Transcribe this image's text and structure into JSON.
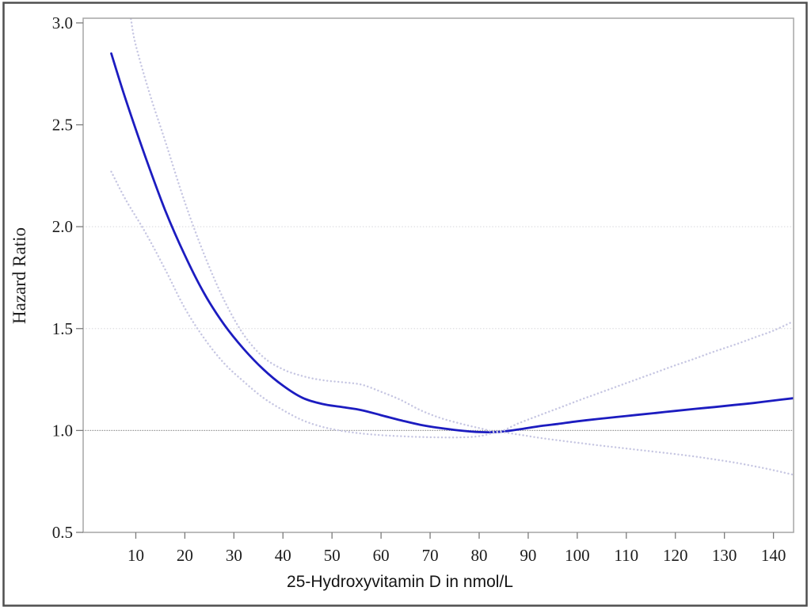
{
  "figure": {
    "background": "#ffffff",
    "border_color": "#4f4f4f"
  },
  "chart_data": {
    "type": "line",
    "title": "",
    "xlabel": "25-Hydroxyvitamin D in nmol/L",
    "ylabel": "Hazard Ratio",
    "xlim": [
      -0.73,
      144.1
    ],
    "ylim": [
      0.5,
      3.023
    ],
    "x_ticks": [
      10,
      20,
      30,
      40,
      50,
      60,
      70,
      80,
      90,
      100,
      110,
      120,
      130,
      140
    ],
    "y_ticks": [
      0.5,
      1.0,
      1.5,
      2.0,
      2.5,
      3.0
    ],
    "gridlines_y": [
      1.5,
      2.0
    ],
    "reference_line_y": 1.0,
    "grid_on": true,
    "legend": null,
    "colors": {
      "estimate_line": "#1c1cc0",
      "confidence_band": "#c6c6e2",
      "gridline": "#d8d8dc",
      "reference_line": "#9a9a9a",
      "plot_frame": "#a6a6a6",
      "tick": "#7a7a7a"
    },
    "series": [
      {
        "name": "hazard-ratio-estimate",
        "style": "solid",
        "color": "#1c1cc0",
        "x": [
          5,
          8,
          12,
          16,
          20,
          24,
          28,
          32,
          36,
          40,
          44,
          48,
          52,
          56,
          60,
          64,
          68,
          72,
          76,
          80,
          84,
          88,
          92,
          96,
          100,
          104,
          108,
          112,
          116,
          120,
          124,
          128,
          132,
          136,
          140,
          144
        ],
        "y": [
          2.85,
          2.62,
          2.34,
          2.08,
          1.86,
          1.67,
          1.52,
          1.4,
          1.3,
          1.22,
          1.16,
          1.13,
          1.115,
          1.1,
          1.075,
          1.05,
          1.028,
          1.012,
          1.0,
          0.992,
          0.993,
          1.005,
          1.02,
          1.032,
          1.045,
          1.056,
          1.066,
          1.076,
          1.086,
          1.096,
          1.106,
          1.115,
          1.125,
          1.135,
          1.147,
          1.158
        ]
      },
      {
        "name": "upper-95-ci",
        "style": "dotted",
        "color": "#c6c6e2",
        "x": [
          9,
          10,
          13,
          16,
          20,
          24,
          28,
          32,
          36,
          40,
          44,
          48,
          52,
          56,
          60,
          64,
          68,
          72,
          76,
          80,
          84,
          88,
          92,
          96,
          100,
          104,
          108,
          112,
          116,
          120,
          124,
          128,
          132,
          136,
          140,
          144
        ],
        "y": [
          3.02,
          2.89,
          2.64,
          2.42,
          2.12,
          1.86,
          1.64,
          1.47,
          1.36,
          1.3,
          1.267,
          1.247,
          1.237,
          1.225,
          1.19,
          1.15,
          1.1,
          1.062,
          1.035,
          1.012,
          0.995,
          1.035,
          1.072,
          1.108,
          1.145,
          1.18,
          1.215,
          1.25,
          1.285,
          1.32,
          1.353,
          1.388,
          1.42,
          1.455,
          1.49,
          1.535
        ]
      },
      {
        "name": "lower-95-ci",
        "style": "dotted",
        "color": "#c6c6e2",
        "x": [
          5,
          8,
          12,
          16,
          20,
          24,
          28,
          32,
          36,
          40,
          44,
          48,
          52,
          56,
          60,
          64,
          68,
          72,
          76,
          80,
          84,
          88,
          92,
          96,
          100,
          104,
          108,
          112,
          116,
          120,
          124,
          128,
          132,
          136,
          140,
          144
        ],
        "y": [
          2.27,
          2.13,
          1.97,
          1.79,
          1.6,
          1.45,
          1.33,
          1.24,
          1.16,
          1.1,
          1.05,
          1.018,
          0.998,
          0.985,
          0.977,
          0.972,
          0.968,
          0.966,
          0.966,
          0.972,
          0.991,
          0.98,
          0.965,
          0.952,
          0.94,
          0.928,
          0.917,
          0.906,
          0.895,
          0.884,
          0.872,
          0.858,
          0.843,
          0.825,
          0.805,
          0.783
        ]
      }
    ]
  }
}
